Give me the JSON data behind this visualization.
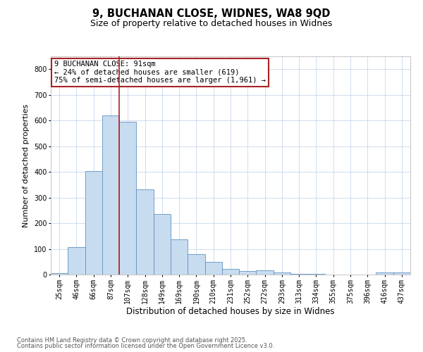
{
  "title1": "9, BUCHANAN CLOSE, WIDNES, WA8 9QD",
  "title2": "Size of property relative to detached houses in Widnes",
  "xlabel": "Distribution of detached houses by size in Widnes",
  "ylabel": "Number of detached properties",
  "categories": [
    "25sqm",
    "46sqm",
    "66sqm",
    "87sqm",
    "107sqm",
    "128sqm",
    "149sqm",
    "169sqm",
    "190sqm",
    "210sqm",
    "231sqm",
    "252sqm",
    "272sqm",
    "293sqm",
    "313sqm",
    "334sqm",
    "355sqm",
    "375sqm",
    "396sqm",
    "416sqm",
    "437sqm"
  ],
  "values": [
    5,
    108,
    403,
    620,
    595,
    333,
    235,
    137,
    80,
    50,
    22,
    15,
    17,
    7,
    3,
    2,
    0,
    0,
    0,
    7,
    8
  ],
  "bar_color": "#c8dcf0",
  "bar_edge_color": "#6090c0",
  "vline_x": 3.5,
  "vline_color": "#aa2222",
  "annotation_text": "9 BUCHANAN CLOSE: 91sqm\n← 24% of detached houses are smaller (619)\n75% of semi-detached houses are larger (1,961) →",
  "annotation_box_color": "#aa2222",
  "ylim": [
    0,
    850
  ],
  "yticks": [
    0,
    100,
    200,
    300,
    400,
    500,
    600,
    700,
    800
  ],
  "footnote1": "Contains HM Land Registry data © Crown copyright and database right 2025.",
  "footnote2": "Contains public sector information licensed under the Open Government Licence v3.0.",
  "bg_color": "#ffffff",
  "grid_color": "#c8d8ec",
  "title1_fontsize": 10.5,
  "title2_fontsize": 9.0,
  "ylabel_fontsize": 8.0,
  "xlabel_fontsize": 8.5,
  "tick_fontsize": 7.0,
  "annot_fontsize": 7.5,
  "footnote_fontsize": 6.0
}
